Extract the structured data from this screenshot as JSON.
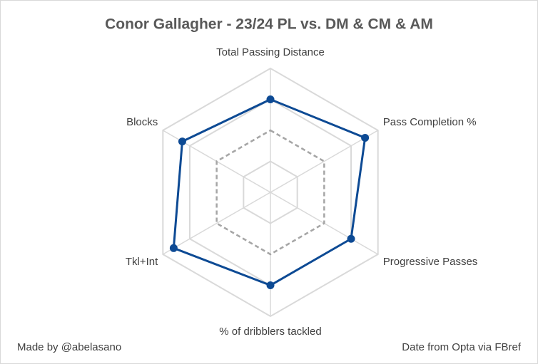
{
  "chart_data": {
    "type": "radar",
    "title": "Conor Gallagher - 23/24 PL vs. DM & CM & AM",
    "categories": [
      "Total Passing Distance",
      "Pass Completion %",
      "Progressive Passes",
      "% of dribblers tackled",
      "Tkl+Int",
      "Blocks"
    ],
    "series": [
      {
        "name": "Conor Gallagher",
        "color": "#0d4a94",
        "values": [
          75,
          88,
          75,
          75,
          90,
          82
        ]
      }
    ],
    "ylim": [
      0,
      100
    ],
    "yticks": [
      25,
      50,
      75,
      100
    ],
    "dashed_ring": 50,
    "grid": true,
    "notes": {
      "left": "Made by @abelasano",
      "right": "Date from Opta via FBref"
    }
  }
}
